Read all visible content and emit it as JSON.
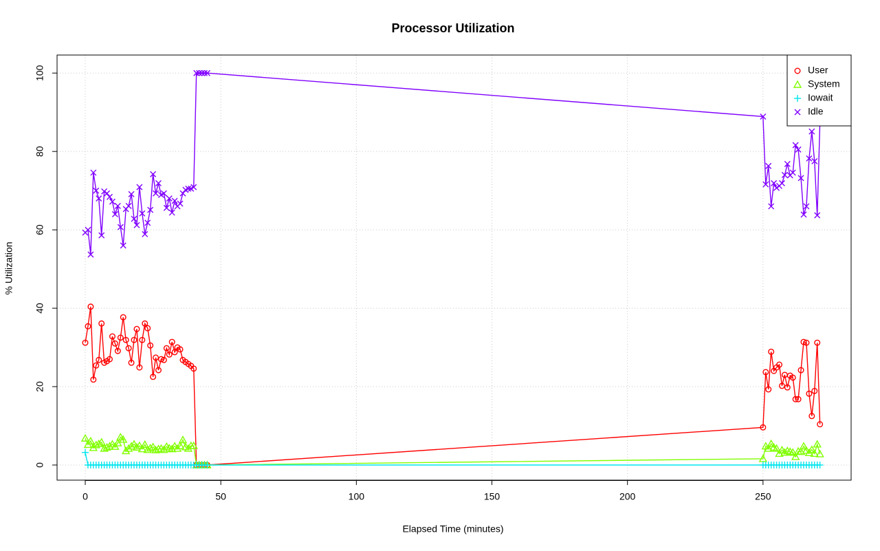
{
  "chart_data": {
    "type": "line",
    "title": "Processor Utilization",
    "x_label": "Elapsed Time (minutes)",
    "y_label": "% Utilization",
    "x": [
      0,
      1,
      2,
      3,
      4,
      5,
      6,
      7,
      8,
      9,
      10,
      11,
      12,
      13,
      14,
      15,
      16,
      17,
      18,
      19,
      20,
      21,
      22,
      23,
      24,
      25,
      26,
      27,
      28,
      29,
      30,
      31,
      32,
      33,
      34,
      35,
      36,
      37,
      38,
      39,
      40,
      41,
      42,
      43,
      44,
      45,
      250,
      251,
      252,
      253,
      254,
      255,
      256,
      257,
      258,
      259,
      260,
      261,
      262,
      263,
      264,
      265,
      266,
      267,
      268,
      269,
      270,
      271
    ],
    "series": [
      {
        "name": "User",
        "color": "#ff0000",
        "marker": "circle",
        "values": [
          31.2,
          35.4,
          40.4,
          21.8,
          25.4,
          26.8,
          36.1,
          26.1,
          26.5,
          27,
          32.8,
          31,
          29.1,
          32.5,
          37.7,
          31.9,
          29.8,
          26.1,
          31.9,
          34.7,
          24.9,
          31.9,
          36.1,
          34.9,
          30.5,
          22.5,
          27.4,
          24.2,
          27,
          26.8,
          29.8,
          28.2,
          31.4,
          28.8,
          30,
          29.5,
          26.8,
          26.3,
          25.8,
          25.3,
          24.6,
          0,
          0,
          0,
          0,
          0,
          9.6,
          23.7,
          19.3,
          28.9,
          24,
          24.9,
          25.6,
          20.2,
          23,
          19.8,
          22.8,
          22.3,
          16.8,
          16.8,
          24.2,
          31.4,
          31.2,
          18.2,
          12.5,
          18.9,
          31.2,
          10.4
        ]
      },
      {
        "name": "System",
        "color": "#80ff00",
        "marker": "triangle",
        "values": [
          6.8,
          5.2,
          6.1,
          4.4,
          5.1,
          5.4,
          5.8,
          4.2,
          4.5,
          4.8,
          5.3,
          4.7,
          5.6,
          7.1,
          6.5,
          3.6,
          4.2,
          4.8,
          5.3,
          4.5,
          4.9,
          4.1,
          5.2,
          3.9,
          4.3,
          4.6,
          3.8,
          4.1,
          4.2,
          3.9,
          4.7,
          4.3,
          4.1,
          4.8,
          4.2,
          4.9,
          6.4,
          4.6,
          4.2,
          4.9,
          4.9,
          0,
          0,
          0,
          0,
          0,
          1.6,
          4.8,
          4.2,
          5.4,
          4.5,
          4.2,
          2.9,
          3.8,
          3.2,
          3.6,
          3.4,
          3.2,
          2.1,
          3.5,
          3.4,
          4.8,
          3.7,
          3.1,
          3.9,
          2.9,
          5.3,
          2.8
        ]
      },
      {
        "name": "Iowait",
        "color": "#00e5ee",
        "marker": "plus",
        "values": [
          3.2,
          0,
          0,
          0,
          0,
          0,
          0,
          0,
          0,
          0,
          0,
          0,
          0,
          0,
          0,
          0,
          0,
          0,
          0,
          0,
          0,
          0,
          0,
          0,
          0,
          0,
          0,
          0,
          0,
          0,
          0,
          0,
          0,
          0,
          0,
          0,
          0,
          0,
          0,
          0,
          0,
          0,
          0,
          0,
          0,
          0,
          0,
          0,
          0,
          0,
          0,
          0,
          0,
          0,
          0,
          0,
          0,
          0,
          0,
          0,
          0,
          0,
          0,
          0,
          0,
          0,
          0,
          0
        ]
      },
      {
        "name": "Idle",
        "color": "#8000ff",
        "marker": "cross",
        "values": [
          59.3,
          60,
          53.7,
          74.6,
          70,
          68,
          58.6,
          69.8,
          69.3,
          68.4,
          67.2,
          64,
          66.1,
          60.7,
          56,
          65.3,
          66.1,
          69.1,
          62.8,
          61.2,
          70.9,
          64.2,
          58.9,
          61.8,
          65.1,
          74.2,
          69.3,
          71.9,
          68.9,
          69.3,
          65.6,
          68,
          64.4,
          67.4,
          66,
          66.7,
          69.3,
          70.2,
          70.5,
          70.5,
          70.9,
          100,
          100,
          100,
          100,
          100,
          88.9,
          71.6,
          76.3,
          66,
          71.9,
          70.7,
          71.2,
          71.9,
          74,
          76.8,
          73.9,
          74.6,
          81.6,
          80.5,
          73.2,
          63.9,
          66,
          78.2,
          85.1,
          77.5,
          63.7,
          87.4
        ]
      }
    ],
    "xlim": [
      -10.4,
      282.5
    ],
    "ylim": [
      -3.86,
      104.6
    ],
    "xticks": [
      0,
      50,
      100,
      150,
      200,
      250
    ],
    "yticks": [
      0,
      20,
      40,
      60,
      80,
      100
    ],
    "grid": true,
    "legend": "top-right"
  }
}
